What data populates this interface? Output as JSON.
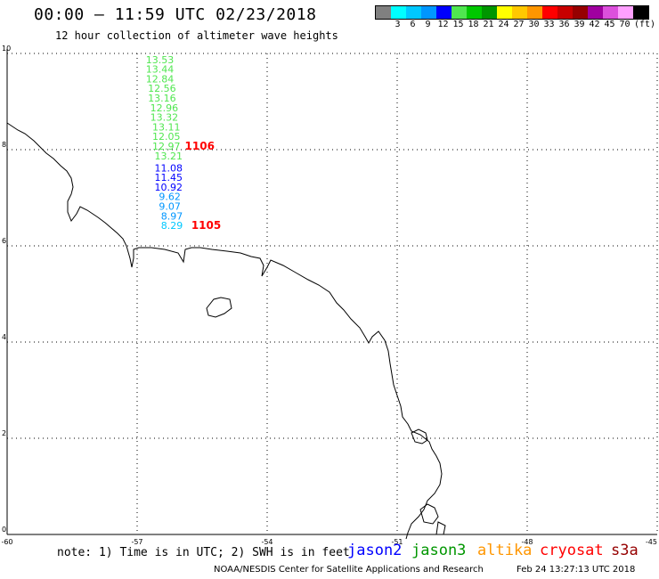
{
  "header": {
    "title": "00:00 – 11:59 UTC 02/23/2018",
    "subtitle": "12 hour collection of altimeter wave heights"
  },
  "legend": {
    "unit": "(ft)",
    "bins": [
      {
        "label": "",
        "color": "#808080"
      },
      {
        "label": "3",
        "color": "#00ffff"
      },
      {
        "label": "6",
        "color": "#00c8ff"
      },
      {
        "label": "9",
        "color": "#0096ff"
      },
      {
        "label": "12",
        "color": "#0000ff"
      },
      {
        "label": "15",
        "color": "#50e650"
      },
      {
        "label": "18",
        "color": "#00c800"
      },
      {
        "label": "21",
        "color": "#009600"
      },
      {
        "label": "24",
        "color": "#ffff00"
      },
      {
        "label": "27",
        "color": "#ffc800"
      },
      {
        "label": "30",
        "color": "#ff9600"
      },
      {
        "label": "33",
        "color": "#ff0000"
      },
      {
        "label": "36",
        "color": "#c80000"
      },
      {
        "label": "39",
        "color": "#960000"
      },
      {
        "label": "42",
        "color": "#a000a0"
      },
      {
        "label": "45",
        "color": "#dc50dc"
      },
      {
        "label": "70",
        "color": "#ffa0ff"
      },
      {
        "label": "",
        "color": "#000000"
      }
    ]
  },
  "axes": {
    "x_ticks": [
      "-60",
      "-57",
      "-54",
      "-51",
      "-48",
      "-45"
    ],
    "y_ticks": [
      "0",
      "2",
      "4",
      "6",
      "8",
      "10"
    ],
    "lon_range": [
      -60,
      -45
    ],
    "lat_range": [
      0,
      10
    ]
  },
  "observations": [
    {
      "value": "13.53",
      "lon": -56.8,
      "lat": 9.8,
      "color": "#50e650"
    },
    {
      "value": "13.44",
      "lon": -56.8,
      "lat": 9.6,
      "color": "#50e650"
    },
    {
      "value": "12.84",
      "lon": -56.8,
      "lat": 9.4,
      "color": "#50e650"
    },
    {
      "value": "12.56",
      "lon": -56.75,
      "lat": 9.2,
      "color": "#50e650"
    },
    {
      "value": "13.16",
      "lon": -56.75,
      "lat": 9.0,
      "color": "#50e650"
    },
    {
      "value": "12.96",
      "lon": -56.7,
      "lat": 8.8,
      "color": "#50e650"
    },
    {
      "value": "13.32",
      "lon": -56.7,
      "lat": 8.6,
      "color": "#50e650"
    },
    {
      "value": "13.11",
      "lon": -56.65,
      "lat": 8.4,
      "color": "#50e650"
    },
    {
      "value": "12.05",
      "lon": -56.65,
      "lat": 8.2,
      "color": "#50e650"
    },
    {
      "value": "12.97",
      "lon": -56.65,
      "lat": 8.0,
      "color": "#50e650"
    },
    {
      "value": "13.21",
      "lon": -56.6,
      "lat": 7.8,
      "color": "#50e650"
    },
    {
      "value": "11.08",
      "lon": -56.6,
      "lat": 7.55,
      "color": "#0000ff"
    },
    {
      "value": "11.45",
      "lon": -56.6,
      "lat": 7.35,
      "color": "#0000ff"
    },
    {
      "value": "10.92",
      "lon": -56.6,
      "lat": 7.15,
      "color": "#0000ff"
    },
    {
      "value": "9.62",
      "lon": -56.5,
      "lat": 6.95,
      "color": "#0096ff"
    },
    {
      "value": "9.07",
      "lon": -56.5,
      "lat": 6.75,
      "color": "#0096ff"
    },
    {
      "value": "8.97",
      "lon": -56.45,
      "lat": 6.55,
      "color": "#0096ff"
    },
    {
      "value": "8.29",
      "lon": -56.45,
      "lat": 6.35,
      "color": "#00c8ff"
    }
  ],
  "time_labels": [
    {
      "value": "1106",
      "lon": -55.9,
      "lat": 8.0,
      "color": "#ff0000"
    },
    {
      "value": "1105",
      "lon": -55.75,
      "lat": 6.35,
      "color": "#ff0000"
    }
  ],
  "footer": {
    "note": "note: 1) Time is in UTC; 2) SWH is in feet",
    "satellites": [
      {
        "name": "jason2",
        "color": "#0000ff"
      },
      {
        "name": "jason3",
        "color": "#009600"
      },
      {
        "name": "altika",
        "color": "#ff9600"
      },
      {
        "name": "cryosat",
        "color": "#ff0000"
      },
      {
        "name": "s3a",
        "color": "#960000"
      }
    ],
    "credit": "NOAA/NESDIS Center for Satellite Applications and Research",
    "generated": "Feb 24 13:27:13 UTC 2018"
  }
}
